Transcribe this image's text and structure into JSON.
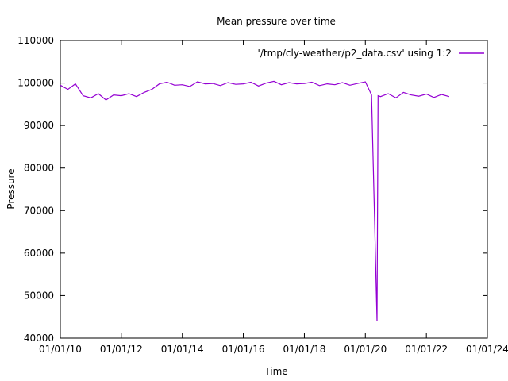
{
  "chart_data": {
    "type": "line",
    "title": "Mean pressure over time",
    "xlabel": "Time",
    "ylabel": "Pressure",
    "x_axis_kind": "date",
    "xlim": [
      "2010-01-01",
      "2024-01-01"
    ],
    "ylim": [
      40000,
      110000
    ],
    "y_ticks": [
      40000,
      50000,
      60000,
      70000,
      80000,
      90000,
      100000,
      110000
    ],
    "x_ticks": [
      "01/01/10",
      "01/01/12",
      "01/01/14",
      "01/01/16",
      "01/01/18",
      "01/01/20",
      "01/01/22",
      "01/01/24"
    ],
    "x_ticks_date": [
      "2010-01-01",
      "2012-01-01",
      "2014-01-01",
      "2016-01-01",
      "2018-01-01",
      "2020-01-01",
      "2022-01-01",
      "2024-01-01"
    ],
    "grid": false,
    "legend_position": "top-right",
    "series": [
      {
        "name": "'/tmp/cly-weather/p2_data.csv' using 1:2",
        "color": "#9400d3",
        "x": [
          "2010-01-01",
          "2010-04-01",
          "2010-07-01",
          "2010-10-01",
          "2011-01-01",
          "2011-04-01",
          "2011-07-01",
          "2011-10-01",
          "2012-01-01",
          "2012-04-01",
          "2012-07-01",
          "2012-10-01",
          "2013-01-01",
          "2013-04-01",
          "2013-07-01",
          "2013-10-01",
          "2014-01-01",
          "2014-04-01",
          "2014-07-01",
          "2014-10-01",
          "2015-01-01",
          "2015-04-01",
          "2015-07-01",
          "2015-10-01",
          "2016-01-01",
          "2016-04-01",
          "2016-07-01",
          "2016-10-01",
          "2017-01-01",
          "2017-04-01",
          "2017-07-01",
          "2017-10-01",
          "2018-01-01",
          "2018-04-01",
          "2018-07-01",
          "2018-10-01",
          "2019-01-01",
          "2019-04-01",
          "2019-07-01",
          "2019-10-01",
          "2020-01-01",
          "2020-03-15",
          "2020-05-20",
          "2020-06-01",
          "2020-07-01",
          "2020-10-01",
          "2021-01-01",
          "2021-04-01",
          "2021-07-01",
          "2021-10-01",
          "2022-01-01",
          "2022-04-01",
          "2022-07-01",
          "2022-10-01"
        ],
        "values": [
          99500,
          98500,
          99800,
          97000,
          96500,
          97500,
          96000,
          97200,
          97000,
          97500,
          96800,
          97800,
          98500,
          99800,
          100200,
          99500,
          99600,
          99200,
          100300,
          99800,
          99900,
          99400,
          100100,
          99700,
          99800,
          100200,
          99300,
          100000,
          100400,
          99600,
          100100,
          99800,
          99900,
          100200,
          99400,
          99800,
          99600,
          100100,
          99500,
          99900,
          100300,
          97200,
          44000,
          97000,
          96800,
          97500,
          96500,
          97800,
          97200,
          96900,
          97400,
          96600,
          97300,
          96800
        ]
      }
    ]
  }
}
